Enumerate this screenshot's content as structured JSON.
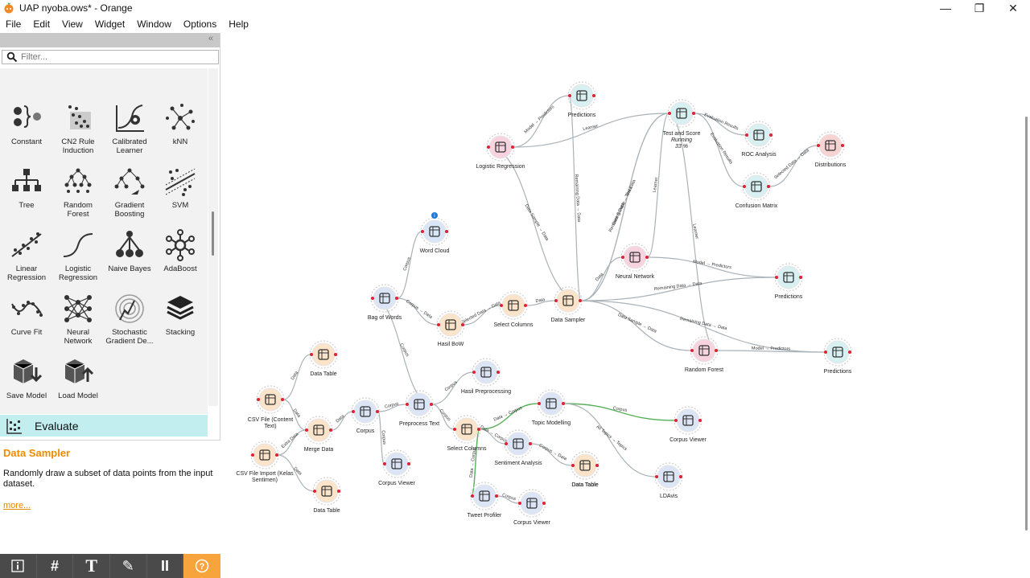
{
  "window": {
    "title": "UAP nyoba.ows* - Orange",
    "minimize": "—",
    "maximize": "❐",
    "close": "✕"
  },
  "menu": [
    "File",
    "Edit",
    "View",
    "Widget",
    "Window",
    "Options",
    "Help"
  ],
  "toolbox": {
    "filter_placeholder": "Filter...",
    "collapse": "«",
    "tools": [
      {
        "label": "Constant"
      },
      {
        "label": "CN2 Rule Induction"
      },
      {
        "label": "Calibrated Learner"
      },
      {
        "label": "kNN"
      },
      {
        "label": "Tree"
      },
      {
        "label": "Random Forest"
      },
      {
        "label": "Gradient Boosting"
      },
      {
        "label": "SVM"
      },
      {
        "label": "Linear Regression"
      },
      {
        "label": "Logistic Regression"
      },
      {
        "label": "Naive Bayes"
      },
      {
        "label": "AdaBoost"
      },
      {
        "label": "Curve Fit"
      },
      {
        "label": "Neural Network"
      },
      {
        "label": "Stochastic Gradient De..."
      },
      {
        "label": "Stacking"
      },
      {
        "label": "Save Model"
      },
      {
        "label": "Load Model"
      }
    ],
    "category": "Evaluate"
  },
  "help": {
    "title": "Data Sampler",
    "description": "Randomly draw a subset of data points from the input dataset.",
    "more": "more..."
  },
  "bottom_toolbar": [
    {
      "name": "info-button",
      "glyph": "i"
    },
    {
      "name": "grid-button",
      "glyph": "#"
    },
    {
      "name": "text-button",
      "glyph": "T"
    },
    {
      "name": "pen-button",
      "glyph": "✎"
    },
    {
      "name": "pause-button",
      "glyph": "II"
    },
    {
      "name": "help-button",
      "glyph": "?"
    }
  ],
  "canvas": {
    "nodes": [
      {
        "id": "predictions1",
        "label": "Predictions",
        "color": "#d8f0f2",
        "icon": "predictions-icon"
      },
      {
        "id": "test_score",
        "label": "Test and Score",
        "status": [
          "Running",
          "33 %"
        ],
        "color": "#d8f0f2",
        "icon": "test-and-score-icon"
      },
      {
        "id": "logreg",
        "label": "Logistic Regression",
        "color": "#f7d3df",
        "icon": "logistic-regression-icon"
      },
      {
        "id": "roc",
        "label": "ROC Analysis",
        "color": "#d8f0f2",
        "icon": "roc-icon"
      },
      {
        "id": "distributions",
        "label": "Distributions",
        "color": "#f7d3d3",
        "icon": "distributions-icon"
      },
      {
        "id": "confusion",
        "label": "Confusion Matrix",
        "color": "#d8f0f2",
        "icon": "confusion-matrix-icon"
      },
      {
        "id": "wordcloud",
        "label": "Word Cloud",
        "color": "#d9e6f7",
        "icon": "word-cloud-icon"
      },
      {
        "id": "neuralnet",
        "label": "Neural Network",
        "color": "#f7d3df",
        "icon": "neural-network-icon"
      },
      {
        "id": "predictions2",
        "label": "Predictions",
        "color": "#d8f0f2",
        "icon": "predictions-icon"
      },
      {
        "id": "bow",
        "label": "Bag of Words",
        "color": "#dbe5f5",
        "icon": "bag-of-words-icon"
      },
      {
        "id": "hasilbow",
        "label": "Hasil BoW",
        "color": "#fbe4c9",
        "icon": "data-table-icon"
      },
      {
        "id": "selcols1",
        "label": "Select Columns",
        "color": "#fbe4c9",
        "icon": "select-columns-icon"
      },
      {
        "id": "sampler",
        "label": "Data Sampler",
        "color": "#fbe4c9",
        "icon": "data-sampler-icon"
      },
      {
        "id": "randforest",
        "label": "Random Forest",
        "color": "#f7d3df",
        "icon": "random-forest-icon"
      },
      {
        "id": "predictions3",
        "label": "Predictions",
        "color": "#d8f0f2",
        "icon": "predictions-icon"
      },
      {
        "id": "datatable1",
        "label": "Data Table",
        "color": "#fbe4c9",
        "icon": "data-table-icon"
      },
      {
        "id": "hasilpre",
        "label": "Hasil Preprocessing",
        "color": "#dbe5f5",
        "icon": "corpus-viewer-icon"
      },
      {
        "id": "csvcontent",
        "label": "CSV File (Content Text)",
        "color": "#fbe4c9",
        "icon": "csv-file-icon"
      },
      {
        "id": "merge",
        "label": "Merge Data",
        "color": "#fbe4c9",
        "icon": "merge-data-icon"
      },
      {
        "id": "corpus",
        "label": "Corpus",
        "color": "#dbe5f5",
        "icon": "corpus-icon"
      },
      {
        "id": "preprocess",
        "label": "Preprocess Text",
        "color": "#dbe5f5",
        "icon": "preprocess-text-icon"
      },
      {
        "id": "selcols2",
        "label": "Select Columns",
        "color": "#fbe4c9",
        "icon": "select-columns-icon"
      },
      {
        "id": "topic",
        "label": "Topic Modelling",
        "color": "#dbe5f5",
        "icon": "topic-modelling-icon"
      },
      {
        "id": "corpusviewer1",
        "label": "Corpus Viewer",
        "color": "#dbe5f5",
        "icon": "corpus-viewer-icon"
      },
      {
        "id": "csvimport",
        "label": "CSV File Import (Kelas Sentimen)",
        "color": "#fbe4c9",
        "icon": "csv-import-icon"
      },
      {
        "id": "sentiment",
        "label": "Sentiment Analysis",
        "color": "#dbe5f5",
        "icon": "sentiment-icon"
      },
      {
        "id": "datatable2",
        "label": "Data Table",
        "color": "#fbe4c9",
        "icon": "data-table-icon"
      },
      {
        "id": "corpusviewer2",
        "label": "Corpus Viewer",
        "color": "#dbe5f5",
        "icon": "corpus-viewer-icon"
      },
      {
        "id": "ldavis",
        "label": "LDAvis",
        "color": "#dbe5f5",
        "icon": "ldavis-icon"
      },
      {
        "id": "datatable3",
        "label": "Data Table",
        "color": "#fbe4c9",
        "icon": "data-table-icon"
      },
      {
        "id": "datatable4",
        "label": "Data Table",
        "color": "#fbe4c9",
        "icon": "data-table-icon"
      },
      {
        "id": "tweet",
        "label": "Tweet Profiler",
        "color": "#dbe5f5",
        "icon": "tweet-profiler-icon"
      },
      {
        "id": "corpusviewer3",
        "label": "Corpus Viewer",
        "color": "#dbe5f5",
        "icon": "corpus-viewer-icon"
      }
    ],
    "links": [
      {
        "from": "logreg",
        "to": "predictions1",
        "label": "Model → Predictors"
      },
      {
        "from": "logreg",
        "to": "test_score",
        "label": "Learner"
      },
      {
        "from": "sampler",
        "to": "predictions1",
        "label": "Remaining Data → Data"
      },
      {
        "from": "sampler",
        "to": "logreg",
        "label": "Data Sample → Data"
      },
      {
        "from": "sampler",
        "to": "test_score",
        "label": "Data Sample → Data"
      },
      {
        "from": "sampler",
        "to": "test_score",
        "label": "Remaining Data → Test Data"
      },
      {
        "from": "neuralnet",
        "to": "test_score",
        "label": "Learner"
      },
      {
        "from": "randforest",
        "to": "test_score",
        "label": "Learner"
      },
      {
        "from": "test_score",
        "to": "roc",
        "label": "Evaluation Results"
      },
      {
        "from": "test_score",
        "to": "confusion",
        "label": "Evaluation Results"
      },
      {
        "from": "confusion",
        "to": "distributions",
        "label": "Selected Data → Data"
      },
      {
        "from": "neuralnet",
        "to": "predictions2",
        "label": "Model → Predictors"
      },
      {
        "from": "sampler",
        "to": "predictions2",
        "label": "Remaining Data → Data"
      },
      {
        "from": "sampler",
        "to": "neuralnet",
        "label": "Data"
      },
      {
        "from": "sampler",
        "to": "randforest",
        "label": "Data Sample → Data"
      },
      {
        "from": "sampler",
        "to": "predictions3",
        "label": "Remaining Data → Data"
      },
      {
        "from": "randforest",
        "to": "predictions3",
        "label": "Model → Predictors"
      },
      {
        "from": "bow",
        "to": "wordcloud",
        "label": "Corpus"
      },
      {
        "from": "bow",
        "to": "hasilbow",
        "label": "Corpus → Data"
      },
      {
        "from": "hasilbow",
        "to": "selcols1",
        "label": "Selected Data → Data"
      },
      {
        "from": "selcols1",
        "to": "sampler",
        "label": "Data"
      },
      {
        "from": "preprocess",
        "to": "bow",
        "label": "Corpus"
      },
      {
        "from": "csvcontent",
        "to": "datatable1",
        "label": "Data"
      },
      {
        "from": "csvcontent",
        "to": "merge",
        "label": "Data"
      },
      {
        "from": "csvimport",
        "to": "merge",
        "label": "Extra Data"
      },
      {
        "from": "csvimport",
        "to": "datatable4",
        "label": "Data"
      },
      {
        "from": "merge",
        "to": "corpus",
        "label": "Data"
      },
      {
        "from": "corpus",
        "to": "preprocess",
        "label": "Corpus"
      },
      {
        "from": "corpus",
        "to": "corpusviewer2",
        "label": "Corpus"
      },
      {
        "from": "preprocess",
        "to": "hasilpre",
        "label": "Corpus"
      },
      {
        "from": "preprocess",
        "to": "selcols2",
        "label": "Corpus"
      },
      {
        "from": "selcols2",
        "to": "topic",
        "label": "Data → Corpus"
      },
      {
        "from": "selcols2",
        "to": "sentiment",
        "label": "Data → Corpus"
      },
      {
        "from": "selcols2",
        "to": "tweet",
        "label": "Data → Corpus"
      },
      {
        "from": "topic",
        "to": "corpusviewer1",
        "label": "Corpus"
      },
      {
        "from": "topic",
        "to": "ldavis",
        "label": "All Topics → Topics"
      },
      {
        "from": "sentiment",
        "to": "datatable3",
        "label": "Corpus → Data"
      },
      {
        "from": "tweet",
        "to": "corpusviewer3",
        "label": "Corpus"
      }
    ]
  }
}
